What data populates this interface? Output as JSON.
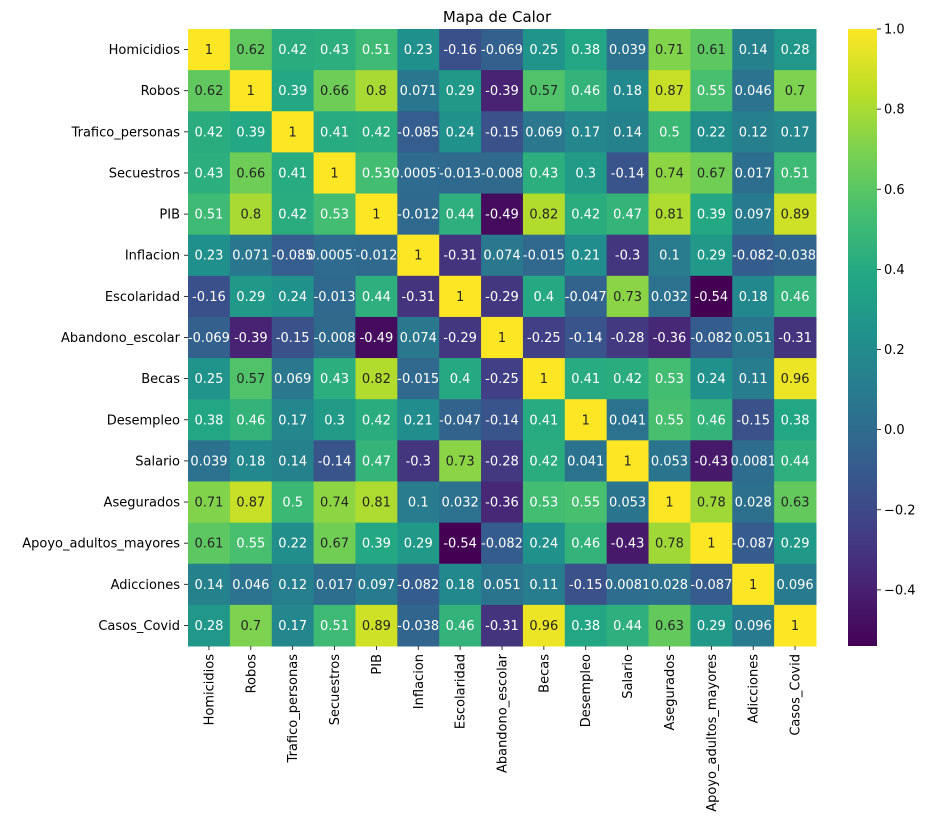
{
  "chart_data": {
    "type": "heatmap",
    "title": "Mapa de Calor",
    "colormap": "viridis",
    "labels": [
      "Homicidios",
      "Robos",
      "Trafico_personas",
      "Secuestros",
      "PIB",
      "Inflacion",
      "Escolaridad",
      "Abandono_escolar",
      "Becas",
      "Desempleo",
      "Salario",
      "Asegurados",
      "Apoyo_adultos_mayores",
      "Adicciones",
      "Casos_Covid"
    ],
    "matrix": [
      [
        1,
        0.62,
        0.42,
        0.43,
        0.51,
        0.23,
        -0.16,
        -0.069,
        0.25,
        0.38,
        0.039,
        0.71,
        0.61,
        0.14,
        0.28
      ],
      [
        0.62,
        1,
        0.39,
        0.66,
        0.8,
        0.071,
        0.29,
        -0.39,
        0.57,
        0.46,
        0.18,
        0.87,
        0.55,
        0.046,
        0.7
      ],
      [
        0.42,
        0.39,
        1,
        0.41,
        0.42,
        -0.085,
        0.24,
        -0.15,
        0.069,
        0.17,
        0.14,
        0.5,
        0.22,
        0.12,
        0.17
      ],
      [
        0.43,
        0.66,
        0.41,
        1,
        0.53,
        0.00057,
        -0.013,
        -0.008,
        0.43,
        0.3,
        -0.14,
        0.74,
        0.67,
        0.017,
        0.51
      ],
      [
        0.51,
        0.8,
        0.42,
        0.53,
        1,
        -0.012,
        0.44,
        -0.49,
        0.82,
        0.42,
        0.47,
        0.81,
        0.39,
        0.097,
        0.89
      ],
      [
        0.23,
        0.071,
        -0.085,
        0.00057,
        -0.012,
        1,
        -0.31,
        0.074,
        -0.015,
        0.21,
        -0.3,
        0.1,
        0.29,
        -0.082,
        -0.038
      ],
      [
        -0.16,
        0.29,
        0.24,
        -0.013,
        0.44,
        -0.31,
        1,
        -0.29,
        0.4,
        -0.047,
        0.73,
        0.032,
        -0.54,
        0.18,
        0.46
      ],
      [
        -0.069,
        -0.39,
        -0.15,
        -0.008,
        -0.49,
        0.074,
        -0.29,
        1,
        -0.25,
        -0.14,
        -0.28,
        -0.36,
        -0.082,
        0.051,
        -0.31
      ],
      [
        0.25,
        0.57,
        0.069,
        0.43,
        0.82,
        -0.015,
        0.4,
        -0.25,
        1,
        0.41,
        0.42,
        0.53,
        0.24,
        0.11,
        0.96
      ],
      [
        0.38,
        0.46,
        0.17,
        0.3,
        0.42,
        0.21,
        -0.047,
        -0.14,
        0.41,
        1,
        0.041,
        0.55,
        0.46,
        -0.15,
        0.38
      ],
      [
        0.039,
        0.18,
        0.14,
        -0.14,
        0.47,
        -0.3,
        0.73,
        -0.28,
        0.42,
        0.041,
        1,
        0.053,
        -0.43,
        0.0081,
        0.44
      ],
      [
        0.71,
        0.87,
        0.5,
        0.74,
        0.81,
        0.1,
        0.032,
        -0.36,
        0.53,
        0.55,
        0.053,
        1,
        0.78,
        0.028,
        0.63
      ],
      [
        0.61,
        0.55,
        0.22,
        0.67,
        0.39,
        0.29,
        -0.54,
        -0.082,
        0.24,
        0.46,
        -0.43,
        0.78,
        1,
        -0.087,
        0.29
      ],
      [
        0.14,
        0.046,
        0.12,
        0.017,
        0.097,
        -0.082,
        0.18,
        0.051,
        0.11,
        -0.15,
        0.0081,
        0.028,
        -0.087,
        1,
        0.096
      ],
      [
        0.28,
        0.7,
        0.17,
        0.51,
        0.89,
        -0.038,
        0.46,
        -0.31,
        0.96,
        0.38,
        0.44,
        0.63,
        0.29,
        0.096,
        1
      ]
    ],
    "colorbar": {
      "range": [
        -0.54,
        1
      ],
      "ticks": [
        "−0.4",
        "−0.2",
        "0.0",
        "0.2",
        "0.4",
        "0.6",
        "0.8",
        "1.0"
      ],
      "tick_values": [
        -0.4,
        -0.2,
        0,
        0.2,
        0.4,
        0.6,
        0.8,
        1.0
      ]
    },
    "annotated": true
  }
}
